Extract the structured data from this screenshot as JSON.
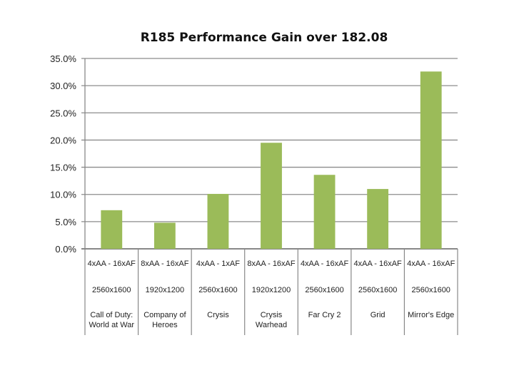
{
  "chart_data": {
    "type": "bar",
    "title": "R185 Performance Gain over 182.08",
    "xlabel": "",
    "ylabel": "",
    "ylim": [
      0,
      35
    ],
    "yticks": [
      "0.0%",
      "5.0%",
      "10.0%",
      "15.0%",
      "20.0%",
      "25.0%",
      "30.0%",
      "35.0%"
    ],
    "grid": true,
    "legend": "none",
    "bar_color": "#9BBB59",
    "categories": [
      {
        "settings": "4xAA - 16xAF",
        "resolution": "2560x1600",
        "game": [
          "Call of Duty:",
          "World at War"
        ]
      },
      {
        "settings": "8xAA - 16xAF",
        "resolution": "1920x1200",
        "game": [
          "Company of",
          "Heroes"
        ]
      },
      {
        "settings": "4xAA - 1xAF",
        "resolution": "2560x1600",
        "game": [
          "Crysis"
        ]
      },
      {
        "settings": "8xAA - 16xAF",
        "resolution": "1920x1200",
        "game": [
          "Crysis",
          "Warhead"
        ]
      },
      {
        "settings": "4xAA - 16xAF",
        "resolution": "2560x1600",
        "game": [
          "Far Cry 2"
        ]
      },
      {
        "settings": "4xAA - 16xAF",
        "resolution": "2560x1600",
        "game": [
          "Grid"
        ]
      },
      {
        "settings": "4xAA - 16xAF",
        "resolution": "2560x1600",
        "game": [
          "Mirror's Edge"
        ]
      }
    ],
    "values": [
      7.1,
      4.8,
      10.1,
      19.5,
      13.6,
      11.0,
      32.6
    ]
  }
}
